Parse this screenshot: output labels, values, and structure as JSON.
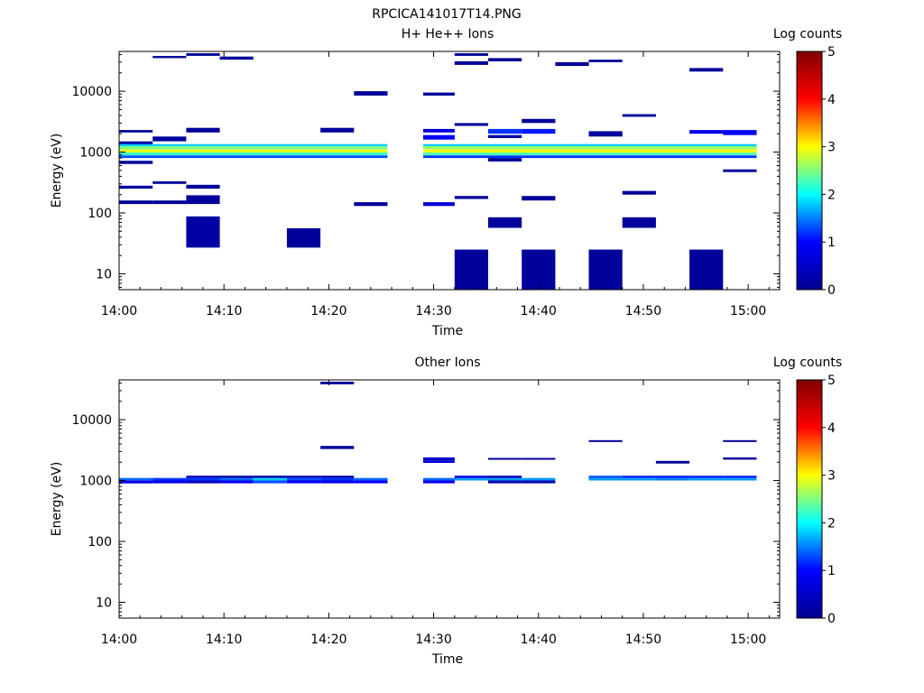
{
  "figure": {
    "title": "RPCICA141017T14.PNG"
  },
  "colormap": {
    "stops": [
      "#00008f",
      "#0000ff",
      "#00ffff",
      "#ffff00",
      "#ff0000",
      "#800000"
    ],
    "range": [
      0,
      5
    ]
  },
  "chart_data": [
    {
      "type": "heatmap",
      "title": "H+ He++ Ions",
      "xlabel": "Time",
      "ylabel": "Energy (eV)",
      "yscale": "log",
      "xlim_min": [
        0,
        63
      ],
      "ylim": [
        5.5,
        45000
      ],
      "xticks": [
        {
          "v": 0,
          "label": "14:00"
        },
        {
          "v": 10,
          "label": "14:10"
        },
        {
          "v": 20,
          "label": "14:20"
        },
        {
          "v": 30,
          "label": "14:30"
        },
        {
          "v": 40,
          "label": "14:40"
        },
        {
          "v": 50,
          "label": "14:50"
        },
        {
          "v": 60,
          "label": "15:00"
        }
      ],
      "yticks": [
        {
          "v": 10,
          "label": "10"
        },
        {
          "v": 100,
          "label": "100"
        },
        {
          "v": 1000,
          "label": "1000"
        },
        {
          "v": 10000,
          "label": "10000"
        }
      ],
      "colorbar": {
        "label": "Log counts",
        "ticks": [
          "0",
          "1",
          "2",
          "3",
          "4",
          "5"
        ]
      },
      "cells": [
        [
          0,
          3.2,
          2100,
          2300,
          0.1
        ],
        [
          0,
          3.2,
          1300,
          1500,
          0.2
        ],
        [
          0,
          3.2,
          640,
          720,
          0.1
        ],
        [
          0,
          3.2,
          250,
          280,
          0.1
        ],
        [
          0,
          3.2,
          140,
          160,
          0.1
        ],
        [
          3.2,
          6.4,
          1500,
          1800,
          0.1
        ],
        [
          3.2,
          6.4,
          300,
          330,
          0.1
        ],
        [
          3.2,
          6.4,
          140,
          160,
          0.1
        ],
        [
          3.2,
          6.4,
          35000,
          38000,
          0.1
        ],
        [
          6.4,
          9.6,
          2100,
          2500,
          0.1
        ],
        [
          6.4,
          9.6,
          250,
          290,
          0.1
        ],
        [
          6.4,
          9.6,
          140,
          195,
          0.1
        ],
        [
          6.4,
          9.6,
          27,
          88,
          0.2
        ],
        [
          6.4,
          9.6,
          38000,
          42000,
          0.1
        ],
        [
          9.6,
          12.8,
          33000,
          37000,
          0.1
        ],
        [
          16,
          19.2,
          27,
          56,
          0.1
        ],
        [
          19.2,
          22.4,
          2100,
          2500,
          0.1
        ],
        [
          22.4,
          25.6,
          8500,
          10000,
          0.1
        ],
        [
          22.4,
          25.6,
          130,
          150,
          0.1
        ],
        [
          29,
          32,
          2100,
          2400,
          0.7
        ],
        [
          29,
          32,
          1600,
          1900,
          1.0
        ],
        [
          29,
          32,
          8500,
          9500,
          0.1
        ],
        [
          29,
          32,
          130,
          150,
          0.6
        ],
        [
          32,
          35.2,
          25,
          5.5,
          0.1
        ],
        [
          32,
          35.2,
          38000,
          42000,
          0.1
        ],
        [
          32,
          35.2,
          27000,
          31000,
          0.1
        ],
        [
          32,
          35.2,
          2700,
          3000,
          0.1
        ],
        [
          32,
          35.2,
          170,
          190,
          0.1
        ],
        [
          35.2,
          38.4,
          2000,
          2400,
          1.2
        ],
        [
          35.2,
          38.4,
          1700,
          1900,
          0.2
        ],
        [
          35.2,
          38.4,
          700,
          800,
          0.1
        ],
        [
          35.2,
          38.4,
          57,
          85,
          0.1
        ],
        [
          35.2,
          38.4,
          31000,
          35000,
          0.1
        ],
        [
          38.4,
          41.6,
          25,
          5.5,
          0.1
        ],
        [
          38.4,
          41.6,
          2000,
          2400,
          1.1
        ],
        [
          38.4,
          41.6,
          3000,
          3500,
          0.1
        ],
        [
          38.4,
          41.6,
          160,
          190,
          0.1
        ],
        [
          41.6,
          44.8,
          26000,
          30000,
          0.05
        ],
        [
          44.8,
          48,
          25,
          5.5,
          0.1
        ],
        [
          44.8,
          48,
          1900,
          2200,
          0.1
        ],
        [
          44.8,
          48,
          1800,
          2000,
          0.1
        ],
        [
          44.8,
          48,
          30000,
          33000,
          0.1
        ],
        [
          48,
          51.2,
          57,
          85,
          0.1
        ],
        [
          48,
          51.2,
          200,
          230,
          0.1
        ],
        [
          48,
          51.2,
          3800,
          4200,
          0.1
        ],
        [
          54.4,
          57.6,
          25,
          5.5,
          0.1
        ],
        [
          54.4,
          57.6,
          2000,
          2300,
          0.8
        ],
        [
          54.4,
          57.6,
          21000,
          24000,
          0.1
        ],
        [
          57.6,
          60.8,
          1900,
          2300,
          0.9
        ],
        [
          57.6,
          60.8,
          470,
          520,
          0.1
        ],
        [
          0,
          25.6,
          1250,
          1350,
          1.8
        ],
        [
          0,
          25.6,
          1100,
          1250,
          2.5
        ],
        [
          0,
          25.6,
          980,
          1100,
          2.9
        ],
        [
          0,
          25.6,
          880,
          980,
          2.2
        ],
        [
          0,
          25.6,
          800,
          880,
          1.3
        ],
        [
          29,
          60.8,
          1250,
          1350,
          1.8
        ],
        [
          29,
          60.8,
          1100,
          1250,
          2.6
        ],
        [
          29,
          60.8,
          980,
          1100,
          3.0
        ],
        [
          29,
          60.8,
          880,
          980,
          2.3
        ],
        [
          29,
          60.8,
          800,
          880,
          1.2
        ]
      ]
    },
    {
      "type": "heatmap",
      "title": "Other Ions",
      "xlabel": "Time",
      "ylabel": "Energy (eV)",
      "yscale": "log",
      "xlim_min": [
        0,
        63
      ],
      "ylim": [
        5.5,
        45000
      ],
      "xticks": [
        {
          "v": 0,
          "label": "14:00"
        },
        {
          "v": 10,
          "label": "14:10"
        },
        {
          "v": 20,
          "label": "14:20"
        },
        {
          "v": 30,
          "label": "14:30"
        },
        {
          "v": 40,
          "label": "14:40"
        },
        {
          "v": 50,
          "label": "14:50"
        },
        {
          "v": 60,
          "label": "15:00"
        }
      ],
      "yticks": [
        {
          "v": 10,
          "label": "10"
        },
        {
          "v": 100,
          "label": "100"
        },
        {
          "v": 1000,
          "label": "1000"
        },
        {
          "v": 10000,
          "label": "10000"
        }
      ],
      "colorbar": {
        "label": "Log counts",
        "ticks": [
          "0",
          "1",
          "2",
          "3",
          "4",
          "5"
        ]
      },
      "cells": [
        [
          0,
          3.2,
          1010,
          1100,
          1.4
        ],
        [
          0,
          3.2,
          900,
          1010,
          0.8
        ],
        [
          3.2,
          6.4,
          1000,
          1100,
          1.2
        ],
        [
          3.2,
          6.4,
          900,
          1000,
          0.8
        ],
        [
          6.4,
          9.6,
          1100,
          1200,
          0.3
        ],
        [
          6.4,
          9.6,
          1000,
          1100,
          1.2
        ],
        [
          6.4,
          9.6,
          900,
          1000,
          0.4
        ],
        [
          9.6,
          12.8,
          1100,
          1200,
          0.2
        ],
        [
          9.6,
          12.8,
          1000,
          1100,
          1.4
        ],
        [
          9.6,
          12.8,
          900,
          1000,
          0.8
        ],
        [
          12.8,
          16,
          1100,
          1200,
          0.2
        ],
        [
          12.8,
          16,
          1000,
          1100,
          1.8
        ],
        [
          12.8,
          16,
          900,
          1000,
          1.3
        ],
        [
          16,
          19.2,
          1100,
          1200,
          0.3
        ],
        [
          16,
          19.2,
          1000,
          1100,
          1.3
        ],
        [
          16,
          19.2,
          900,
          1000,
          0.9
        ],
        [
          19.2,
          22.4,
          38000,
          42000,
          0.1
        ],
        [
          19.2,
          22.4,
          3300,
          3700,
          0.1
        ],
        [
          19.2,
          22.4,
          1100,
          1200,
          0.2
        ],
        [
          19.2,
          22.4,
          1000,
          1100,
          1.2
        ],
        [
          19.2,
          22.4,
          900,
          1000,
          0.8
        ],
        [
          22.4,
          25.6,
          1000,
          1100,
          1.4
        ],
        [
          22.4,
          25.6,
          900,
          1000,
          0.9
        ],
        [
          29,
          32,
          2100,
          2400,
          0.5
        ],
        [
          29,
          32,
          1950,
          2100,
          0.7
        ],
        [
          29,
          32,
          1000,
          1100,
          1.4
        ],
        [
          29,
          32,
          900,
          1000,
          0.8
        ],
        [
          32,
          35.2,
          1100,
          1200,
          0.8
        ],
        [
          32,
          35.2,
          1000,
          1100,
          1.6
        ],
        [
          35.2,
          38.4,
          2200,
          2350,
          0.1
        ],
        [
          35.2,
          38.4,
          1100,
          1200,
          0.3
        ],
        [
          35.2,
          38.4,
          1000,
          1100,
          1.6
        ],
        [
          35.2,
          38.4,
          900,
          1000,
          0.3
        ],
        [
          38.4,
          41.6,
          2200,
          2350,
          0.1
        ],
        [
          38.4,
          41.6,
          1000,
          1100,
          1.6
        ],
        [
          38.4,
          41.6,
          900,
          1000,
          0.3
        ],
        [
          44.8,
          48,
          4300,
          4600,
          0.1
        ],
        [
          44.8,
          48,
          1100,
          1200,
          1.3
        ],
        [
          44.8,
          48,
          1000,
          1100,
          1.6
        ],
        [
          48,
          51.2,
          1100,
          1200,
          1.1
        ],
        [
          48,
          51.2,
          1000,
          1100,
          1.6
        ],
        [
          51.2,
          54.4,
          1900,
          2100,
          0.1
        ],
        [
          51.2,
          54.4,
          1100,
          1200,
          1.1
        ],
        [
          51.2,
          54.4,
          1000,
          1100,
          1.5
        ],
        [
          54.4,
          57.6,
          1100,
          1200,
          1.1
        ],
        [
          54.4,
          57.6,
          1000,
          1100,
          1.6
        ],
        [
          57.6,
          60.8,
          4300,
          4600,
          0.1
        ],
        [
          57.6,
          60.8,
          2200,
          2400,
          0.1
        ],
        [
          57.6,
          60.8,
          1100,
          1200,
          1.1
        ],
        [
          57.6,
          60.8,
          1000,
          1100,
          1.6
        ]
      ]
    }
  ]
}
